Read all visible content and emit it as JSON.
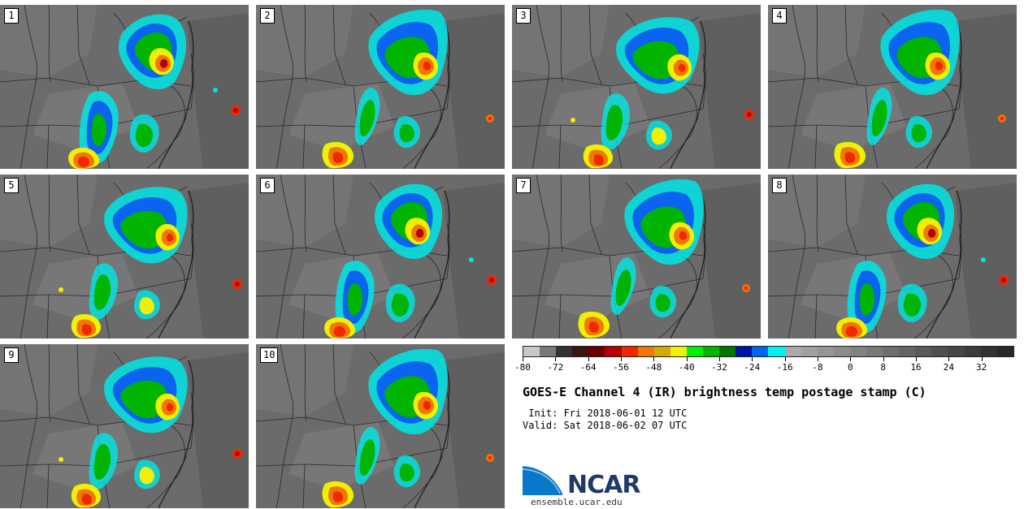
{
  "panels": [
    {
      "label": "1"
    },
    {
      "label": "2"
    },
    {
      "label": "3"
    },
    {
      "label": "4"
    },
    {
      "label": "5"
    },
    {
      "label": "6"
    },
    {
      "label": "7"
    },
    {
      "label": "8"
    },
    {
      "label": "9"
    },
    {
      "label": "10"
    }
  ],
  "colorbar": {
    "colors": [
      "#c8c8c8",
      "#787878",
      "#323232",
      "#3c1414",
      "#6e0000",
      "#b40000",
      "#f02800",
      "#f07800",
      "#d2aa00",
      "#f0f000",
      "#00f000",
      "#00b400",
      "#007800",
      "#0014aa",
      "#0064f0",
      "#00f0f0",
      "#aaaaaa",
      "#a0a0a0",
      "#969696",
      "#8c8c8c",
      "#828282",
      "#787878",
      "#6e6e6e",
      "#646464",
      "#5a5a5a",
      "#505050",
      "#464646",
      "#3c3c3c",
      "#323232",
      "#282828"
    ],
    "tick_labels": [
      "-80",
      "-72",
      "-64",
      "-56",
      "-48",
      "-40",
      "-32",
      "-24",
      "-16",
      "-8",
      "0",
      "8",
      "16",
      "24",
      "32"
    ]
  },
  "title": "GOES-E Channel 4 (IR) brightness temp postage stamp (C)",
  "init": " Init: Fri 2018-06-01 12 UTC",
  "valid": "Valid: Sat 2018-06-02 07 UTC",
  "logo": {
    "name": "NCAR",
    "url": "ensemble.ucar.edu"
  }
}
